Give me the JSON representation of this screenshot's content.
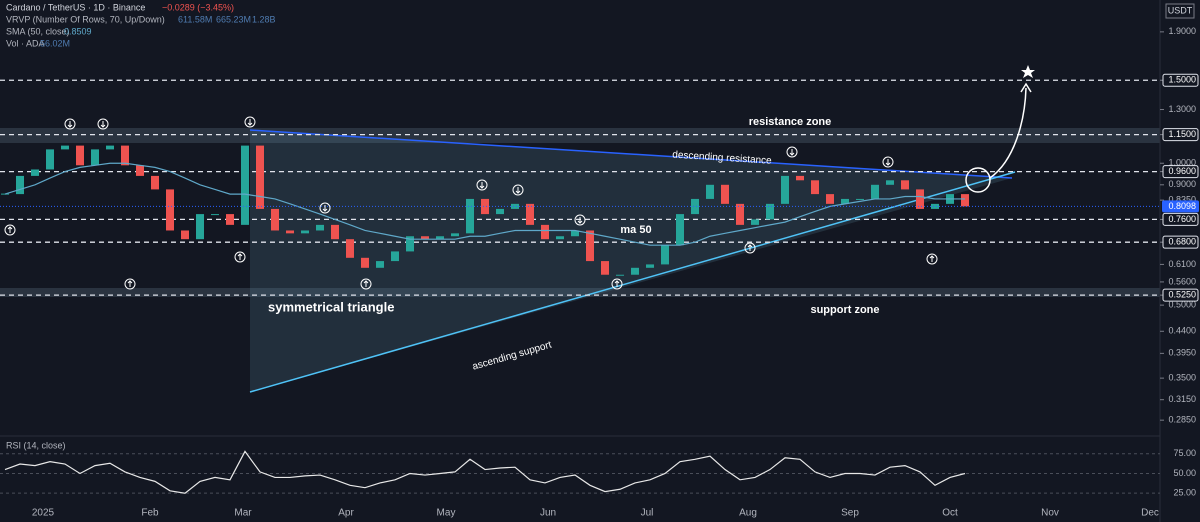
{
  "chart_data": {
    "type": "candlestick",
    "title": "Cardano / TetherUS · 1D · Binance",
    "change": "−0.0289 (−3.45%)",
    "vrvp": {
      "label": "VRVP (Number Of Rows, 70, Up/Down)",
      "values": [
        "611.58M",
        "665.23M",
        "1.28B"
      ]
    },
    "volume": {
      "label": "Vol · ADA",
      "value": "56.02M"
    },
    "unit": "USDT",
    "log_scale": true,
    "color_up": "#26a69a",
    "color_down": "#ef5350",
    "values": [
      0.86,
      0.94,
      0.97,
      1.07,
      1.09,
      0.99,
      1.07,
      1.09,
      0.99,
      0.94,
      0.88,
      0.72,
      0.69,
      0.78,
      0.78,
      0.74,
      1.09,
      0.8,
      0.72,
      0.71,
      0.72,
      0.74,
      0.69,
      0.63,
      0.6,
      0.62,
      0.65,
      0.7,
      0.69,
      0.7,
      0.71,
      0.84,
      0.78,
      0.8,
      0.82,
      0.74,
      0.69,
      0.7,
      0.72,
      0.62,
      0.58,
      0.58,
      0.6,
      0.61,
      0.67,
      0.78,
      0.84,
      0.9,
      0.82,
      0.74,
      0.76,
      0.82,
      0.94,
      0.92,
      0.86,
      0.82,
      0.84,
      0.84,
      0.9,
      0.92,
      0.88,
      0.8,
      0.82,
      0.86,
      0.81
    ],
    "sma": {
      "label": "SMA (50, close)",
      "value": 0.8509,
      "color": "#5fa8c9",
      "values": [
        0.86,
        0.88,
        0.9,
        0.93,
        0.96,
        0.98,
        0.99,
        1.0,
        1.0,
        0.99,
        0.98,
        0.96,
        0.93,
        0.9,
        0.88,
        0.86,
        0.86,
        0.85,
        0.84,
        0.82,
        0.8,
        0.78,
        0.76,
        0.74,
        0.72,
        0.71,
        0.7,
        0.69,
        0.69,
        0.69,
        0.69,
        0.7,
        0.7,
        0.71,
        0.72,
        0.72,
        0.72,
        0.72,
        0.72,
        0.71,
        0.7,
        0.69,
        0.68,
        0.67,
        0.67,
        0.67,
        0.68,
        0.7,
        0.71,
        0.72,
        0.73,
        0.74,
        0.75,
        0.77,
        0.79,
        0.81,
        0.82,
        0.83,
        0.84,
        0.84,
        0.85,
        0.85,
        0.84,
        0.84,
        0.84
      ]
    },
    "ylim": [
      0.269,
      2.22
    ],
    "yticks": [
      {
        "value": 1.9,
        "label": "1.9000"
      },
      {
        "value": 1.5,
        "label": "1.5000"
      },
      {
        "value": 1.3,
        "label": "1.3000"
      },
      {
        "value": 1.15,
        "label": "1.1500"
      },
      {
        "value": 1.0,
        "label": "1.0000"
      },
      {
        "value": 0.96,
        "label": "0.9600"
      },
      {
        "value": 0.9,
        "label": "0.9000"
      },
      {
        "value": 0.835,
        "label": "0.8350"
      },
      {
        "value": 0.76,
        "label": "0.7600"
      },
      {
        "value": 0.68,
        "label": "0.6800"
      },
      {
        "value": 0.61,
        "label": "0.6100"
      },
      {
        "value": 0.56,
        "label": "0.5600"
      },
      {
        "value": 0.525,
        "label": "0.5250"
      },
      {
        "value": 0.5,
        "label": "0.5000"
      },
      {
        "value": 0.44,
        "label": "0.4400"
      },
      {
        "value": 0.395,
        "label": "0.3950"
      },
      {
        "value": 0.35,
        "label": "0.3500"
      },
      {
        "value": 0.315,
        "label": "0.3150"
      },
      {
        "value": 0.285,
        "label": "0.2850"
      }
    ],
    "last_price": 0.8098,
    "levels": [
      1.5,
      1.15,
      0.96,
      0.76,
      0.68,
      0.525
    ],
    "x_labels": [
      "2025",
      "Feb",
      "Mar",
      "Apr",
      "May",
      "Jun",
      "Jul",
      "Aug",
      "Sep",
      "Oct",
      "Nov",
      "Dec"
    ],
    "annotations": {
      "resistance": "resistance zone",
      "descending": "descending resistance",
      "ma": "ma 50",
      "triangle": "symmetrical triangle",
      "ascending": "ascending support",
      "support": "support zone"
    },
    "rsi": {
      "type": "line",
      "label": "RSI (14, close)",
      "color": "#e8e8e8",
      "values": [
        55,
        62,
        60,
        65,
        62,
        50,
        60,
        63,
        52,
        45,
        40,
        28,
        25,
        40,
        45,
        42,
        78,
        52,
        45,
        45,
        47,
        48,
        42,
        35,
        32,
        38,
        42,
        50,
        48,
        50,
        52,
        68,
        55,
        57,
        58,
        42,
        38,
        45,
        48,
        35,
        27,
        30,
        38,
        42,
        50,
        65,
        68,
        72,
        55,
        42,
        45,
        55,
        70,
        68,
        52,
        45,
        50,
        50,
        48,
        58,
        60,
        52,
        35,
        45,
        50
      ],
      "ylim": [
        10,
        92.5
      ],
      "yticks": [
        {
          "value": 75,
          "label": "75.00"
        },
        {
          "value": 50,
          "label": "50.00"
        },
        {
          "value": 25,
          "label": "25.00"
        }
      ]
    }
  }
}
